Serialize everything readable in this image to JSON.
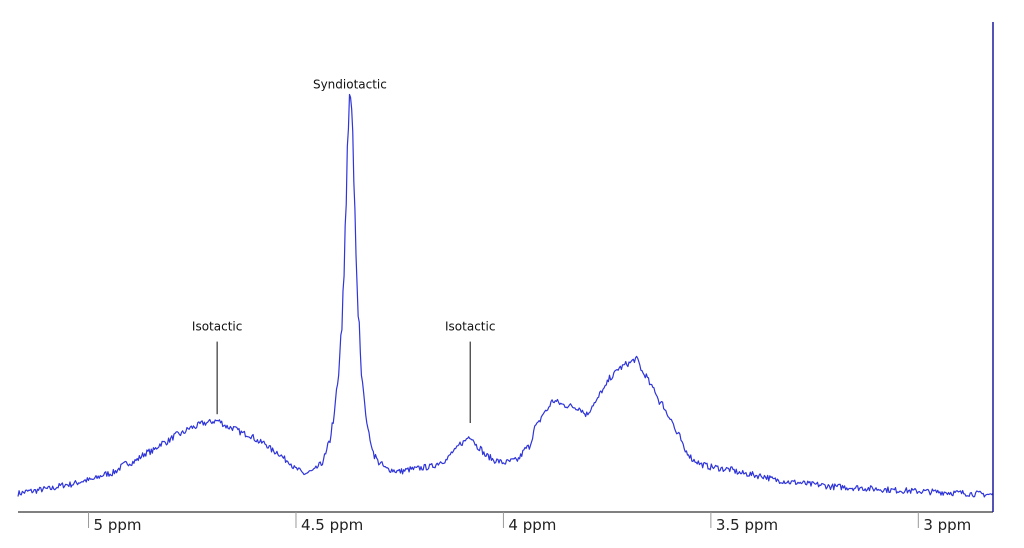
{
  "chart_data": {
    "type": "line",
    "title": "",
    "xlabel": "",
    "ylabel": "",
    "x_unit": "ppm",
    "x_reversed": true,
    "xlim": [
      5.17,
      2.82
    ],
    "ylim": [
      0,
      1.0
    ],
    "grid": false,
    "legend": "none",
    "colors": {
      "spectrum": "#2f35d8",
      "axis": "#000000",
      "right_bar": "#1a1aa0",
      "annotation_line": "#333333"
    },
    "x_ticks": [
      {
        "value": 5.0,
        "label": "5 ppm"
      },
      {
        "value": 4.5,
        "label": "4.5 ppm"
      },
      {
        "value": 4.0,
        "label": "4 ppm"
      },
      {
        "value": 3.5,
        "label": "3.5 ppm"
      },
      {
        "value": 3.0,
        "label": "3 ppm"
      }
    ],
    "annotations": [
      {
        "label": "Syndiotactic",
        "x": 4.37,
        "y": 0.935,
        "type": "text"
      },
      {
        "label": "Isotactic",
        "x": 4.69,
        "y": 0.385,
        "type": "text-with-line",
        "line_top": 0.36,
        "line_bottom": 0.195
      },
      {
        "label": "Isotactic",
        "x": 4.08,
        "y": 0.385,
        "type": "text-with-line",
        "line_top": 0.36,
        "line_bottom": 0.175
      }
    ],
    "series": [
      {
        "values_x": [
          5.17,
          5.14,
          5.1,
          5.05,
          5.0,
          4.95,
          4.9,
          4.85,
          4.82,
          4.78,
          4.75,
          4.72,
          4.69,
          4.66,
          4.62,
          4.58,
          4.55,
          4.52,
          4.5,
          4.48,
          4.46,
          4.44,
          4.43,
          4.42,
          4.41,
          4.4,
          4.39,
          4.385,
          4.38,
          4.375,
          4.37,
          4.365,
          4.36,
          4.355,
          4.35,
          4.34,
          4.33,
          4.32,
          4.31,
          4.3,
          4.28,
          4.25,
          4.22,
          4.18,
          4.14,
          4.12,
          4.1,
          4.08,
          4.06,
          4.04,
          4.02,
          4.0,
          3.97,
          3.94,
          3.92,
          3.9,
          3.88,
          3.85,
          3.82,
          3.8,
          3.78,
          3.76,
          3.74,
          3.72,
          3.7,
          3.68,
          3.66,
          3.64,
          3.62,
          3.6,
          3.58,
          3.56,
          3.54,
          3.52,
          3.5,
          3.46,
          3.42,
          3.38,
          3.34,
          3.3,
          3.25,
          3.2,
          3.15,
          3.1,
          3.05,
          3.0,
          2.95,
          2.9,
          2.86,
          2.82
        ],
        "values_y": [
          0.015,
          0.02,
          0.025,
          0.035,
          0.045,
          0.06,
          0.085,
          0.11,
          0.13,
          0.15,
          0.165,
          0.175,
          0.18,
          0.165,
          0.15,
          0.13,
          0.11,
          0.09,
          0.07,
          0.06,
          0.065,
          0.08,
          0.1,
          0.13,
          0.18,
          0.26,
          0.38,
          0.5,
          0.65,
          0.83,
          0.93,
          0.88,
          0.72,
          0.55,
          0.42,
          0.27,
          0.18,
          0.13,
          0.1,
          0.085,
          0.07,
          0.065,
          0.07,
          0.075,
          0.09,
          0.11,
          0.13,
          0.145,
          0.12,
          0.1,
          0.09,
          0.085,
          0.09,
          0.12,
          0.17,
          0.2,
          0.225,
          0.215,
          0.21,
          0.195,
          0.22,
          0.25,
          0.28,
          0.3,
          0.31,
          0.32,
          0.285,
          0.255,
          0.22,
          0.19,
          0.15,
          0.11,
          0.09,
          0.08,
          0.075,
          0.07,
          0.06,
          0.055,
          0.045,
          0.04,
          0.035,
          0.03,
          0.028,
          0.025,
          0.022,
          0.02,
          0.018,
          0.016,
          0.014,
          0.012
        ]
      }
    ]
  }
}
